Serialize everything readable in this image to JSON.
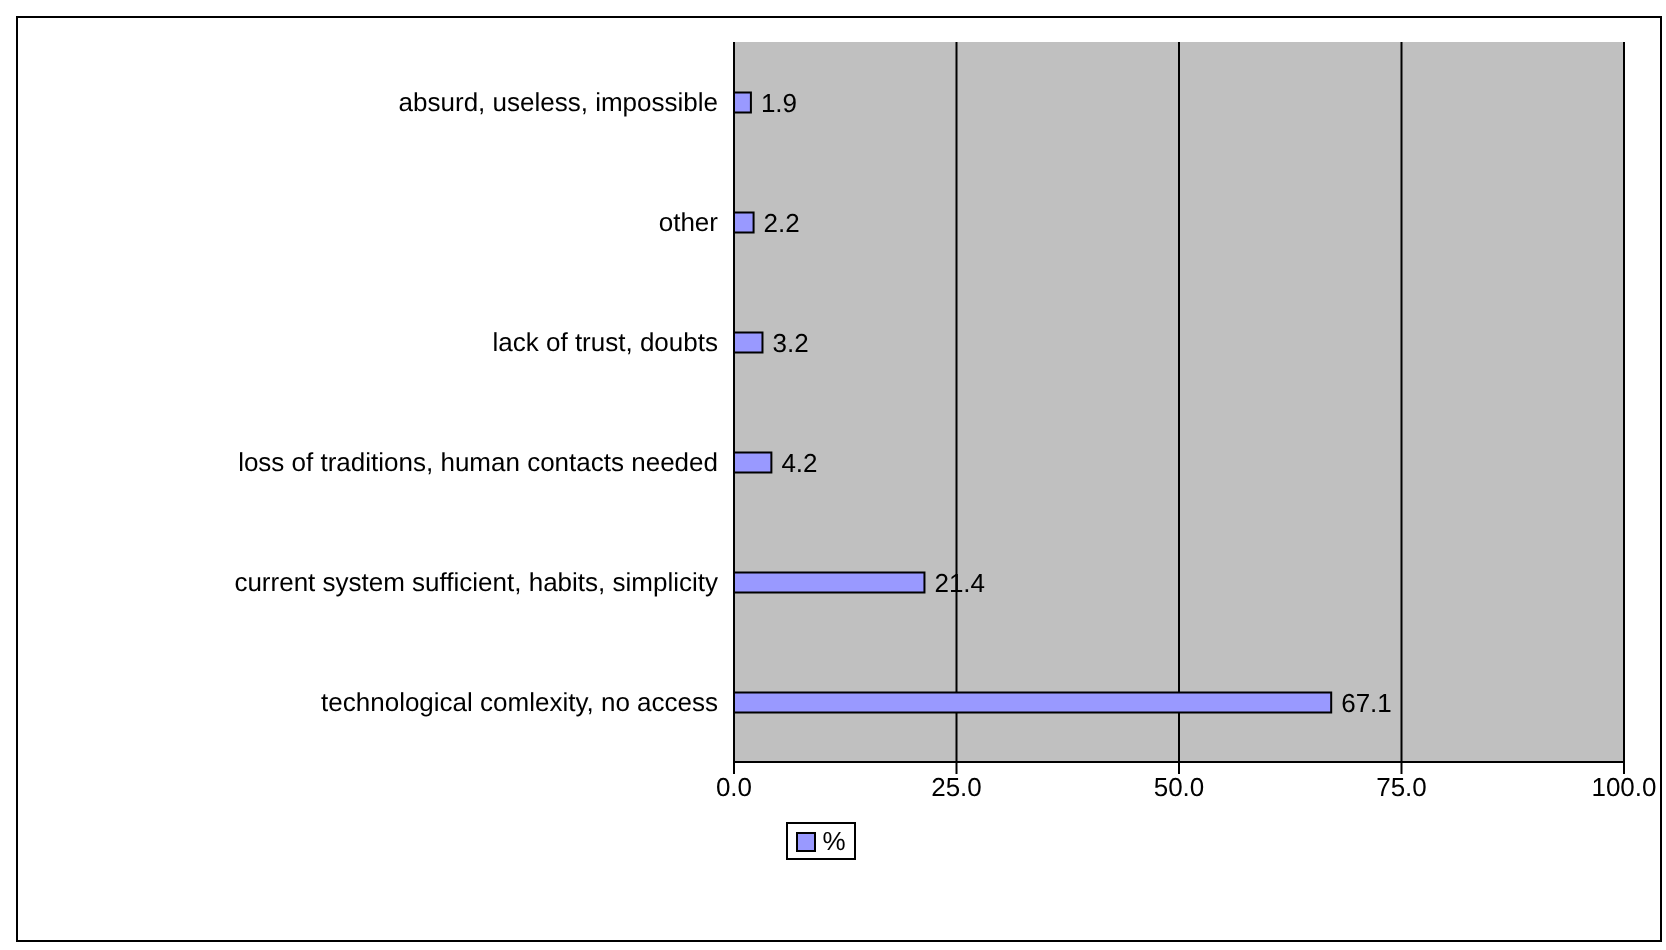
{
  "chart_data": {
    "type": "bar",
    "orientation": "horizontal",
    "categories": [
      "absurd, useless, impossible",
      "other",
      "lack of trust, doubts",
      "loss of traditions, human contacts needed",
      "current system sufficient, habits, simplicity",
      "technological comlexity, no access"
    ],
    "series": [
      {
        "name": "%",
        "color": "#9999ff",
        "values": [
          1.9,
          2.2,
          3.2,
          4.2,
          21.4,
          67.1
        ]
      }
    ],
    "xlim": [
      0,
      100
    ],
    "xticks": [
      {
        "value": 0,
        "label": "0.0"
      },
      {
        "value": 25,
        "label": "25.0"
      },
      {
        "value": 50,
        "label": "50.0"
      },
      {
        "value": 75,
        "label": "75.0"
      },
      {
        "value": 100,
        "label": "100.0"
      }
    ],
    "grid": "x",
    "legend": "bottom",
    "data_labels": true
  }
}
